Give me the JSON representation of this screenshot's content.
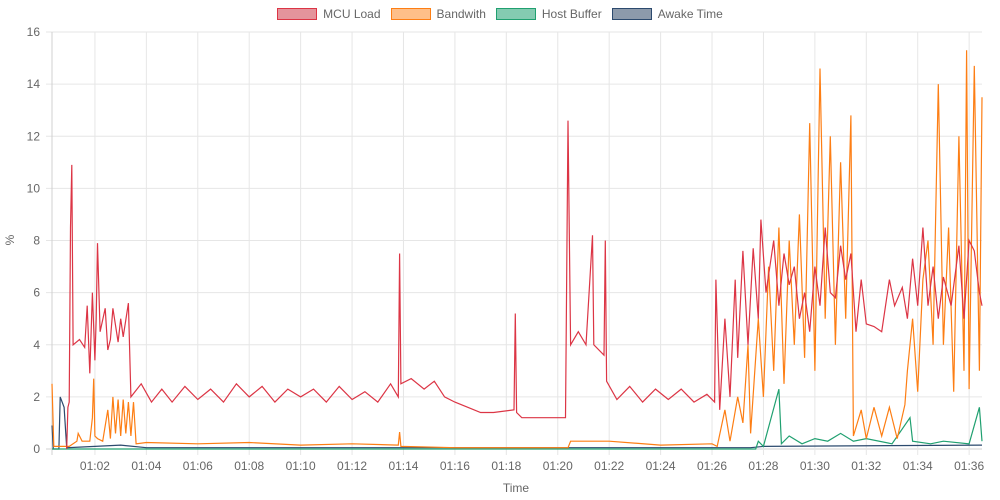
{
  "chart_data": {
    "type": "line",
    "title": "",
    "xlabel": "Time",
    "ylabel": "%",
    "xlim_minutes": [
      60.33,
      96.5
    ],
    "ylim": [
      0,
      16
    ],
    "yticks": [
      "0",
      "2",
      "4",
      "6",
      "8",
      "10",
      "12",
      "14",
      "16"
    ],
    "xticks": [
      "01:02",
      "01:04",
      "01:06",
      "01:08",
      "01:10",
      "01:12",
      "01:14",
      "01:16",
      "01:18",
      "01:20",
      "01:22",
      "01:24",
      "01:26",
      "01:28",
      "01:30",
      "01:32",
      "01:34",
      "01:36"
    ],
    "grid": true,
    "legend_position": "top",
    "series": [
      {
        "name": "MCU Load",
        "color": "#dc3545",
        "fill": "#e4949c",
        "points": [
          [
            60.9,
            0
          ],
          [
            60.95,
            1.6
          ],
          [
            61.0,
            1.8
          ],
          [
            61.05,
            8.5
          ],
          [
            61.1,
            10.9
          ],
          [
            61.15,
            4
          ],
          [
            61.4,
            4.2
          ],
          [
            61.6,
            3.9
          ],
          [
            61.7,
            5.5
          ],
          [
            61.8,
            2.9
          ],
          [
            61.9,
            6.0
          ],
          [
            62.0,
            3.4
          ],
          [
            62.05,
            5
          ],
          [
            62.1,
            7.9
          ],
          [
            62.2,
            4.5
          ],
          [
            62.4,
            5.4
          ],
          [
            62.5,
            3.8
          ],
          [
            62.6,
            4.2
          ],
          [
            62.7,
            5.4
          ],
          [
            62.9,
            4.1
          ],
          [
            63.0,
            5
          ],
          [
            63.1,
            4.3
          ],
          [
            63.3,
            5.6
          ],
          [
            63.4,
            2.0
          ],
          [
            63.8,
            2.5
          ],
          [
            64.2,
            1.8
          ],
          [
            64.6,
            2.3
          ],
          [
            65,
            1.8
          ],
          [
            65.5,
            2.4
          ],
          [
            66,
            1.9
          ],
          [
            66.5,
            2.3
          ],
          [
            67,
            1.8
          ],
          [
            67.5,
            2.5
          ],
          [
            68,
            2
          ],
          [
            68.5,
            2.4
          ],
          [
            69,
            1.8
          ],
          [
            69.5,
            2.3
          ],
          [
            70,
            2
          ],
          [
            70.5,
            2.3
          ],
          [
            71,
            1.8
          ],
          [
            71.5,
            2.4
          ],
          [
            72,
            1.9
          ],
          [
            72.5,
            2.2
          ],
          [
            73,
            1.8
          ],
          [
            73.5,
            2.5
          ],
          [
            73.8,
            2.0
          ],
          [
            73.85,
            7.5
          ],
          [
            73.9,
            2.5
          ],
          [
            74.3,
            2.7
          ],
          [
            74.8,
            2.3
          ],
          [
            75.2,
            2.6
          ],
          [
            75.6,
            2.0
          ],
          [
            76,
            1.8
          ],
          [
            76.5,
            1.6
          ],
          [
            77,
            1.4
          ],
          [
            77.5,
            1.4
          ],
          [
            78.3,
            1.5
          ],
          [
            78.35,
            5.2
          ],
          [
            78.4,
            1.4
          ],
          [
            78.6,
            1.2
          ],
          [
            80.3,
            1.2
          ],
          [
            80.4,
            12.6
          ],
          [
            80.5,
            4
          ],
          [
            80.8,
            4.5
          ],
          [
            81.1,
            4
          ],
          [
            81.35,
            8.2
          ],
          [
            81.4,
            4
          ],
          [
            81.8,
            3.6
          ],
          [
            81.85,
            8.0
          ],
          [
            81.9,
            2.6
          ],
          [
            82.3,
            1.9
          ],
          [
            82.8,
            2.4
          ],
          [
            83.3,
            1.8
          ],
          [
            83.8,
            2.3
          ],
          [
            84.3,
            1.9
          ],
          [
            84.8,
            2.3
          ],
          [
            85.3,
            1.8
          ],
          [
            85.8,
            2.1
          ],
          [
            86.1,
            1.8
          ],
          [
            86.15,
            6.5
          ],
          [
            86.3,
            1.5
          ],
          [
            86.5,
            5
          ],
          [
            86.7,
            2
          ],
          [
            86.9,
            6.5
          ],
          [
            87.0,
            3.5
          ],
          [
            87.2,
            7.6
          ],
          [
            87.4,
            4
          ],
          [
            87.6,
            7.7
          ],
          [
            87.8,
            5
          ],
          [
            87.9,
            8.8
          ],
          [
            88.1,
            6
          ],
          [
            88.4,
            8
          ],
          [
            88.6,
            5.5
          ],
          [
            88.8,
            7.5
          ],
          [
            89.0,
            6.3
          ],
          [
            89.2,
            7
          ],
          [
            89.4,
            5
          ],
          [
            89.6,
            6
          ],
          [
            89.8,
            4.5
          ],
          [
            90.0,
            7
          ],
          [
            90.2,
            5.5
          ],
          [
            90.4,
            8.5
          ],
          [
            90.6,
            6
          ],
          [
            90.8,
            5.8
          ],
          [
            91.0,
            7.8
          ],
          [
            91.2,
            6.5
          ],
          [
            91.4,
            7.5
          ],
          [
            91.6,
            4.5
          ],
          [
            91.8,
            6.5
          ],
          [
            92,
            4.8
          ],
          [
            92.3,
            4.7
          ],
          [
            92.6,
            4.5
          ],
          [
            92.9,
            6.5
          ],
          [
            93.1,
            5.5
          ],
          [
            93.4,
            6.2
          ],
          [
            93.6,
            5
          ],
          [
            93.8,
            7.3
          ],
          [
            94.0,
            5.5
          ],
          [
            94.2,
            8.5
          ],
          [
            94.4,
            5.5
          ],
          [
            94.6,
            7
          ],
          [
            94.8,
            5
          ],
          [
            95.0,
            6.6
          ],
          [
            95.3,
            5.5
          ],
          [
            95.6,
            7.8
          ],
          [
            95.8,
            5
          ],
          [
            96.0,
            8
          ],
          [
            96.2,
            7.6
          ],
          [
            96.4,
            6
          ],
          [
            96.5,
            5.5
          ]
        ]
      },
      {
        "name": "Bandwith",
        "color": "#fd7e14",
        "fill": "#febf89",
        "points": [
          [
            60.33,
            2.5
          ],
          [
            60.4,
            0.1
          ],
          [
            61,
            0.1
          ],
          [
            61.3,
            0.3
          ],
          [
            61.35,
            0.6
          ],
          [
            61.5,
            0.3
          ],
          [
            61.8,
            0.3
          ],
          [
            61.9,
            1.2
          ],
          [
            61.95,
            2.7
          ],
          [
            62.0,
            0.5
          ],
          [
            62.1,
            0.4
          ],
          [
            62.3,
            0.3
          ],
          [
            62.5,
            1.5
          ],
          [
            62.6,
            0.4
          ],
          [
            62.7,
            2.0
          ],
          [
            62.8,
            0.6
          ],
          [
            62.9,
            1.9
          ],
          [
            63.0,
            0.5
          ],
          [
            63.1,
            1.9
          ],
          [
            63.2,
            0.6
          ],
          [
            63.3,
            1.8
          ],
          [
            63.4,
            0.5
          ],
          [
            63.5,
            1.8
          ],
          [
            63.6,
            0.2
          ],
          [
            64,
            0.25
          ],
          [
            66,
            0.2
          ],
          [
            68,
            0.25
          ],
          [
            70,
            0.15
          ],
          [
            72,
            0.2
          ],
          [
            73.8,
            0.15
          ],
          [
            73.85,
            0.65
          ],
          [
            73.9,
            0.1
          ],
          [
            76,
            0.05
          ],
          [
            78,
            0.05
          ],
          [
            80.4,
            0.05
          ],
          [
            80.5,
            0.3
          ],
          [
            82,
            0.3
          ],
          [
            84,
            0.15
          ],
          [
            86,
            0.2
          ],
          [
            86.2,
            0.1
          ],
          [
            86.5,
            1.5
          ],
          [
            86.7,
            0.3
          ],
          [
            87.0,
            2.0
          ],
          [
            87.2,
            1.0
          ],
          [
            87.4,
            4.0
          ],
          [
            87.5,
            0.6
          ],
          [
            87.8,
            5.0
          ],
          [
            88.0,
            2
          ],
          [
            88.2,
            7
          ],
          [
            88.4,
            3
          ],
          [
            88.6,
            8.5
          ],
          [
            88.8,
            2.5
          ],
          [
            89.0,
            8
          ],
          [
            89.2,
            4
          ],
          [
            89.4,
            9
          ],
          [
            89.6,
            3.5
          ],
          [
            89.8,
            12.5
          ],
          [
            90.0,
            3
          ],
          [
            90.2,
            14.6
          ],
          [
            90.4,
            5
          ],
          [
            90.6,
            12
          ],
          [
            90.8,
            4
          ],
          [
            91.0,
            11
          ],
          [
            91.2,
            5
          ],
          [
            91.4,
            12.8
          ],
          [
            91.5,
            0.5
          ],
          [
            91.8,
            1.5
          ],
          [
            92.0,
            0.4
          ],
          [
            92.3,
            1.6
          ],
          [
            92.6,
            0.5
          ],
          [
            92.9,
            1.6
          ],
          [
            93.2,
            0.4
          ],
          [
            93.5,
            1.7
          ],
          [
            93.6,
            3
          ],
          [
            93.8,
            5
          ],
          [
            94.0,
            2.2
          ],
          [
            94.2,
            6.5
          ],
          [
            94.4,
            8
          ],
          [
            94.6,
            4
          ],
          [
            94.8,
            14
          ],
          [
            95.0,
            4
          ],
          [
            95.2,
            8.5
          ],
          [
            95.4,
            2.2
          ],
          [
            95.6,
            12
          ],
          [
            95.8,
            3
          ],
          [
            95.9,
            15.3
          ],
          [
            96.0,
            2.3
          ],
          [
            96.2,
            14.7
          ],
          [
            96.4,
            3
          ],
          [
            96.5,
            13.5
          ]
        ]
      },
      {
        "name": "Host Buffer",
        "color": "#20a070",
        "fill": "#84cbb1",
        "points": [
          [
            60.33,
            0
          ],
          [
            87.7,
            0
          ],
          [
            87.8,
            0.3
          ],
          [
            88.0,
            0.1
          ],
          [
            88.6,
            2.3
          ],
          [
            88.7,
            0.2
          ],
          [
            89.0,
            0.5
          ],
          [
            89.5,
            0.2
          ],
          [
            90,
            0.4
          ],
          [
            90.5,
            0.3
          ],
          [
            91,
            0.6
          ],
          [
            91.5,
            0.3
          ],
          [
            92,
            0.4
          ],
          [
            93,
            0.2
          ],
          [
            93.7,
            1.2
          ],
          [
            93.8,
            0.3
          ],
          [
            94.5,
            0.2
          ],
          [
            95,
            0.3
          ],
          [
            96,
            0.2
          ],
          [
            96.4,
            1.6
          ],
          [
            96.5,
            0.3
          ]
        ]
      },
      {
        "name": "Awake Time",
        "color": "#2c4a6e",
        "fill": "#8c9aab",
        "points": [
          [
            60.33,
            0.9
          ],
          [
            60.38,
            0
          ],
          [
            60.6,
            0
          ],
          [
            60.65,
            2
          ],
          [
            60.8,
            1.6
          ],
          [
            60.9,
            0.05
          ],
          [
            62,
            0.1
          ],
          [
            63,
            0.15
          ],
          [
            64,
            0.05
          ],
          [
            87.5,
            0.05
          ],
          [
            88,
            0.1
          ],
          [
            96.5,
            0.15
          ]
        ]
      }
    ]
  }
}
